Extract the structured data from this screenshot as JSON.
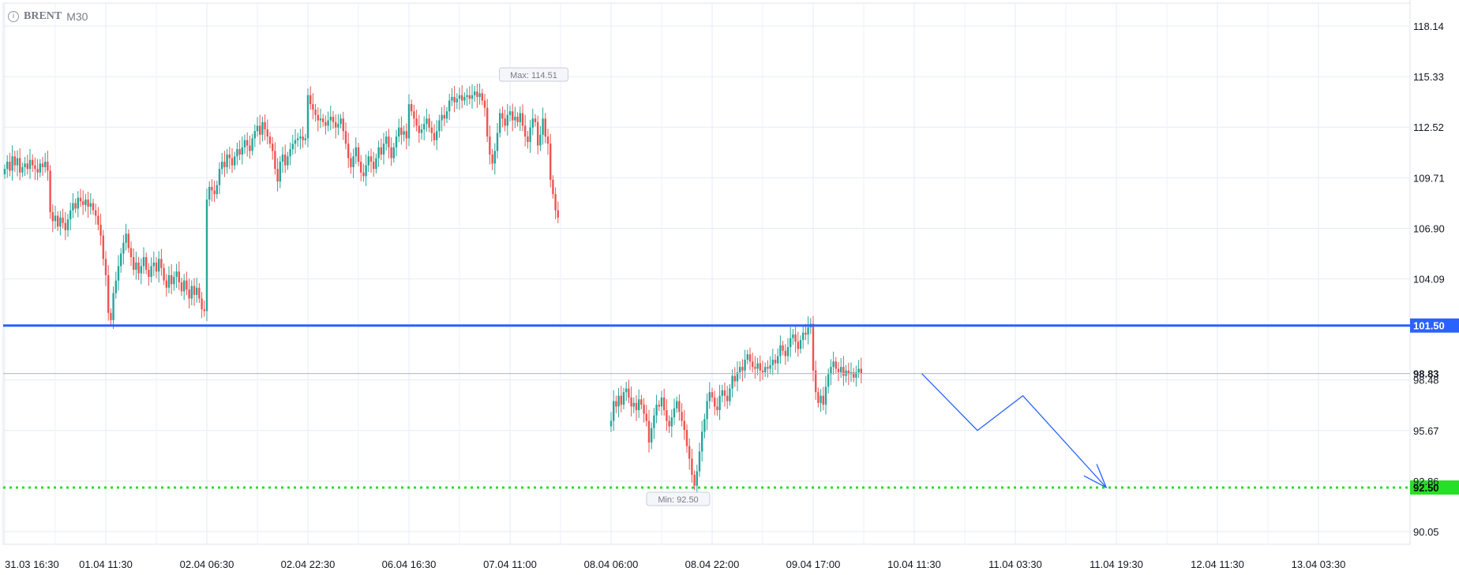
{
  "header": {
    "info_icon": "info-icon",
    "symbol": "BRENT",
    "timeframe": "M30"
  },
  "chart_data": {
    "type": "candlestick",
    "title": "",
    "ylim": [
      89.0,
      119.3
    ],
    "y_ticks": [
      "118.14",
      "115.33",
      "112.52",
      "109.71",
      "106.90",
      "104.09",
      "98.48",
      "95.67",
      "92.86",
      "90.05"
    ],
    "x_ticks": [
      "31.03 16:30",
      "01.04 11:30",
      "02.04 06:30",
      "02.04 22:30",
      "06.04 16:30",
      "07.04 11:00",
      "08.04 06:00",
      "08.04 22:00",
      "09.04 17:00",
      "10.04 11:30",
      "11.04 03:30",
      "11.04 19:30",
      "12.04 11:30",
      "13.04 03:30"
    ],
    "x_tick_index": [
      0,
      40,
      80,
      120,
      160,
      200,
      240,
      280,
      320,
      360,
      400,
      440,
      480,
      520
    ],
    "max_label": "Max: 114.51",
    "max_value": 114.51,
    "min_label": "Min: 92.50",
    "min_value": 92.5,
    "current_price_label": "98.83",
    "current_price": 98.83,
    "horizontal_lines": [
      {
        "price": 101.5,
        "label": "101.50",
        "color": "#2962ff",
        "style": "solid"
      },
      {
        "price": 92.5,
        "label": "92.50",
        "color": "#26e026",
        "style": "dotted"
      }
    ],
    "forecast_path": [
      {
        "index": 363,
        "price": 98.83
      },
      {
        "index": 385,
        "price": 95.67
      },
      {
        "index": 403,
        "price": 97.6
      },
      {
        "index": 436,
        "price": 92.5
      }
    ],
    "up_color": "#26a69a",
    "down_color": "#ef5350",
    "segments": [
      {
        "start_index": 0,
        "closes": [
          110.2,
          110.6,
          110.1,
          110.9,
          110.4,
          110.8,
          110.0,
          110.3,
          110.5,
          110.2,
          110.7,
          110.4,
          110.2,
          110.0,
          110.5,
          110.3,
          110.6,
          110.1,
          107.8,
          107.3,
          107.6,
          107.0,
          107.5,
          107.2,
          106.8,
          107.4,
          107.9,
          108.3,
          108.0,
          108.6,
          108.4,
          108.2,
          108.5,
          108.1,
          108.3,
          107.9,
          107.6,
          107.1,
          106.5,
          105.2,
          104.3,
          102.2,
          101.8,
          103.3,
          104.0,
          104.8,
          105.5,
          106.1,
          106.6,
          105.8,
          105.3,
          104.6,
          105.0,
          104.4,
          104.8,
          105.3,
          104.6,
          104.2,
          104.8,
          105.0,
          104.5,
          105.2,
          104.7,
          104.0,
          103.6,
          104.3,
          103.8,
          104.2,
          104.5,
          103.9,
          103.4,
          104.0,
          103.5,
          103.0,
          103.7,
          103.2,
          103.6,
          103.0,
          102.4,
          102.3,
          108.5,
          109.2,
          109.0,
          108.8,
          109.3,
          110.2,
          110.6,
          110.3,
          111.0,
          110.8,
          110.4,
          110.9,
          111.3,
          111.0,
          111.4,
          111.8,
          111.5,
          111.2,
          111.9,
          112.3,
          112.6,
          112.1,
          112.8,
          112.4,
          112.0,
          111.6,
          111.2,
          110.2,
          109.5,
          110.6,
          111.0,
          110.4,
          110.9,
          111.3,
          111.6,
          111.8,
          111.9,
          112.0,
          111.8,
          111.9,
          114.3,
          113.8,
          113.5,
          113.2,
          112.9,
          113.0,
          112.8,
          112.6,
          112.9,
          113.1,
          112.8,
          112.5,
          112.7,
          113.0,
          112.3,
          111.6,
          110.8,
          110.3,
          110.9,
          111.4,
          110.6,
          110.0,
          109.8,
          110.4,
          110.9,
          110.6,
          110.2,
          110.8,
          111.4,
          111.0,
          111.6,
          112.0,
          111.4,
          110.8,
          111.4,
          112.0,
          112.5,
          112.1,
          112.3,
          111.9,
          113.8,
          113.4,
          113.0,
          112.6,
          112.2,
          112.4,
          112.7,
          113.0,
          112.5,
          112.2,
          111.8,
          112.3,
          112.9,
          113.2,
          113.0,
          113.4,
          114.0,
          114.2,
          113.9,
          114.1,
          114.3,
          114.0,
          114.2,
          114.3,
          114.1,
          114.3,
          114.5,
          114.2,
          114.4,
          114.0,
          113.6,
          112.0,
          111.0,
          110.5,
          111.2,
          112.2,
          113.3,
          113.0,
          112.6,
          113.2,
          113.4,
          112.9,
          113.1,
          112.8,
          113.3,
          112.6,
          112.0,
          111.7,
          112.5,
          113.0,
          112.8,
          111.5,
          112.1,
          113.0,
          112.0,
          111.6,
          109.6,
          108.8,
          107.9,
          107.5
        ]
      },
      {
        "start_index": 240,
        "closes": [
          96.2,
          97.3,
          97.0,
          97.6,
          97.1,
          97.8,
          98.0,
          97.5,
          97.0,
          97.2,
          96.8,
          97.4,
          97.1,
          96.6,
          96.2,
          95.0,
          95.8,
          96.5,
          97.1,
          97.0,
          97.5,
          96.8,
          96.2,
          95.9,
          96.4,
          96.9,
          97.3,
          96.7,
          96.2,
          95.7,
          94.8,
          94.1,
          93.2,
          92.6,
          93.4,
          94.5,
          95.6,
          96.3,
          97.3,
          97.8,
          97.5,
          97.0,
          96.8,
          97.6,
          97.9,
          97.6,
          97.3,
          98.0,
          98.7,
          98.4,
          98.9,
          99.2,
          99.0,
          99.6,
          99.9,
          99.5,
          99.2,
          99.1,
          99.4,
          99.0,
          98.9,
          99.2,
          99.1,
          99.3,
          99.6,
          99.4,
          99.8,
          100.4,
          100.1,
          99.8,
          100.3,
          100.8,
          101.0,
          100.6,
          100.2,
          100.7,
          101.1,
          101.0,
          101.4,
          101.6,
          99.0,
          97.8,
          97.2,
          97.6,
          97.1,
          98.1,
          98.8,
          99.2,
          99.5,
          99.1,
          98.9,
          99.2,
          98.7,
          99.0,
          98.8,
          98.9,
          98.6,
          98.9,
          99.1,
          98.83
        ]
      }
    ]
  }
}
